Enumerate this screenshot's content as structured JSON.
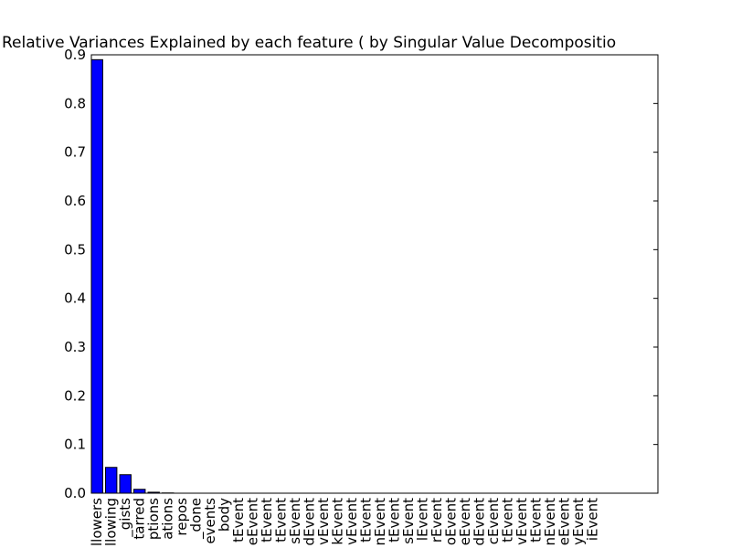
{
  "chart_data": {
    "type": "bar",
    "title": "Relative Variances Explained by each feature ( by Singular Value Decompositio",
    "categories": [
      "llowers",
      "llowing",
      "_gists",
      "tarred",
      "ptions",
      "ations",
      "repos",
      "_done",
      "events",
      "body",
      "tEvent",
      "eEvent",
      "tEvent",
      "tEvent",
      "sEvent",
      "dEvent",
      "vEvent",
      "kEvent",
      "vEvent",
      "tEvent",
      "nEvent",
      "tEvent",
      "sEvent",
      "lEvent",
      "rEvent",
      "oEvent",
      "eEvent",
      "dEvent",
      "cEvent",
      "tEvent",
      "vEvent",
      "tEvent",
      "nEvent",
      "eEvent",
      "yEvent",
      "iEvent"
    ],
    "values": [
      0.89,
      0.053,
      0.038,
      0.008,
      0.002,
      0.0005,
      0,
      0,
      0,
      0,
      0,
      0,
      0,
      0,
      0,
      0,
      0,
      0,
      0,
      0,
      0,
      0,
      0,
      0,
      0,
      0,
      0,
      0,
      0,
      0,
      0,
      0,
      0,
      0,
      0,
      0
    ],
    "color": "#0000ff",
    "xlim": [
      0,
      40
    ],
    "ylim": [
      0,
      0.9
    ],
    "yticks": [
      {
        "value": 0,
        "label": "0.0"
      },
      0.1,
      0.2,
      0.3,
      0.4,
      0.5,
      0.6,
      0.7,
      0.8,
      0.9
    ]
  }
}
